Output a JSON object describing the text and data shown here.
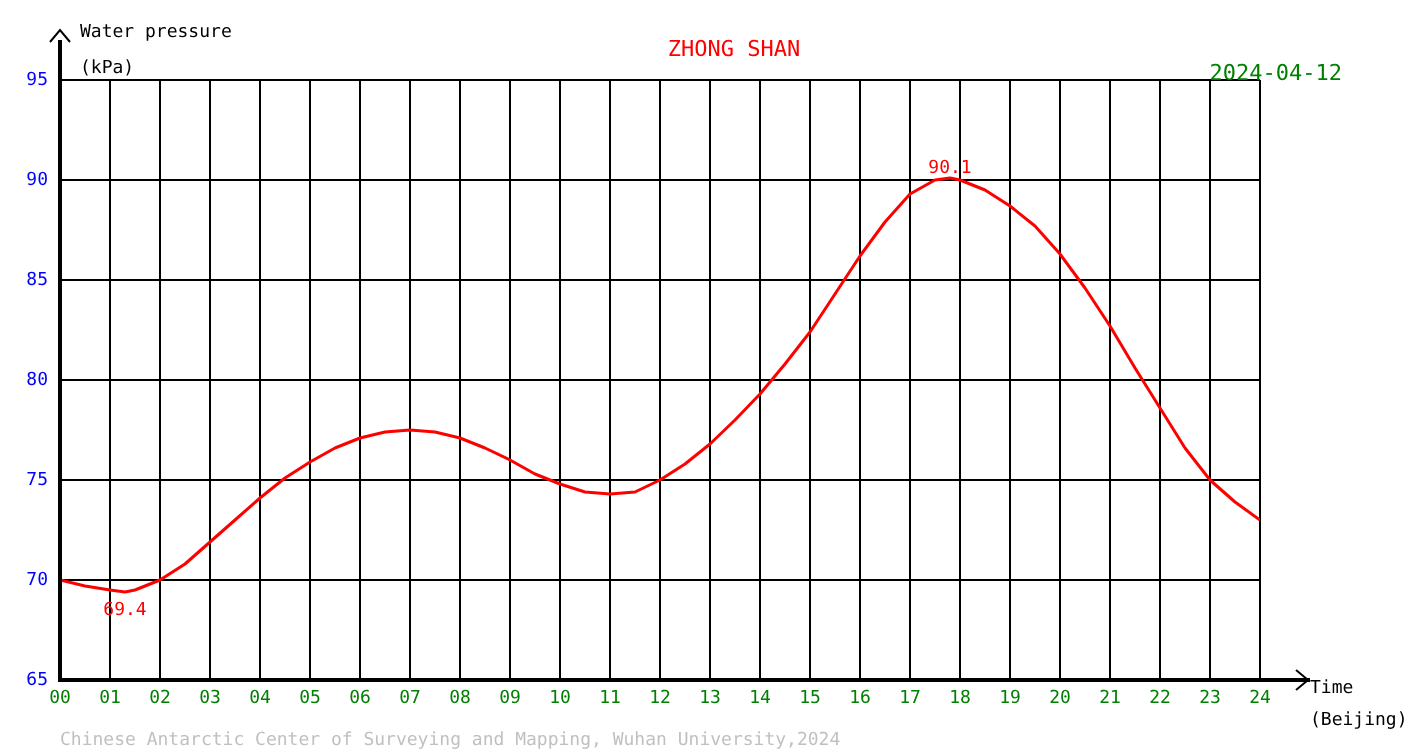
{
  "chart_data": {
    "type": "line",
    "title": "ZHONG SHAN",
    "subtitle": "2024-04-12",
    "ylabel": "Water pressure\n(kPa)",
    "xlabel": "Time\n(Beijing)",
    "x": [
      0,
      0.5,
      1,
      1.3,
      1.5,
      2,
      2.5,
      3,
      3.5,
      4,
      4.5,
      5,
      5.5,
      6,
      6.5,
      7,
      7.5,
      8,
      8.5,
      9,
      9.5,
      10,
      10.5,
      11,
      11.5,
      12,
      12.5,
      13,
      13.5,
      14,
      14.5,
      15,
      15.5,
      16,
      16.5,
      17,
      17.5,
      17.8,
      18,
      18.5,
      19,
      19.5,
      20,
      20.5,
      21,
      21.5,
      22,
      22.5,
      23,
      23.5,
      24
    ],
    "series": [
      {
        "color": "#ff0000",
        "values": [
          70.0,
          69.7,
          69.5,
          69.4,
          69.5,
          70.0,
          70.8,
          71.9,
          73.0,
          74.1,
          75.1,
          75.9,
          76.6,
          77.1,
          77.4,
          77.5,
          77.4,
          77.1,
          76.6,
          76.0,
          75.3,
          74.8,
          74.4,
          74.3,
          74.4,
          75.0,
          75.8,
          76.8,
          78.0,
          79.3,
          80.8,
          82.4,
          84.3,
          86.2,
          87.9,
          89.3,
          90.0,
          90.1,
          90.0,
          89.5,
          88.7,
          87.7,
          86.3,
          84.6,
          82.7,
          80.6,
          78.6,
          76.6,
          75.0,
          73.9,
          73.0
        ]
      }
    ],
    "xlim": [
      0,
      24
    ],
    "xticks": [
      {
        "value": 0,
        "label": "00"
      },
      {
        "value": 1,
        "label": "01"
      },
      {
        "value": 2,
        "label": "02"
      },
      {
        "value": 3,
        "label": "03"
      },
      {
        "value": 4,
        "label": "04"
      },
      {
        "value": 5,
        "label": "05"
      },
      {
        "value": 6,
        "label": "06"
      },
      {
        "value": 7,
        "label": "07"
      },
      {
        "value": 8,
        "label": "08"
      },
      {
        "value": 9,
        "label": "09"
      },
      {
        "value": 10,
        "label": "10"
      },
      {
        "value": 11,
        "label": "11"
      },
      {
        "value": 12,
        "label": "12"
      },
      {
        "value": 13,
        "label": "13"
      },
      {
        "value": 14,
        "label": "14"
      },
      {
        "value": 15,
        "label": "15"
      },
      {
        "value": 16,
        "label": "16"
      },
      {
        "value": 17,
        "label": "17"
      },
      {
        "value": 18,
        "label": "18"
      },
      {
        "value": 19,
        "label": "19"
      },
      {
        "value": 20,
        "label": "20"
      },
      {
        "value": 21,
        "label": "21"
      },
      {
        "value": 22,
        "label": "22"
      },
      {
        "value": 23,
        "label": "23"
      },
      {
        "value": 24,
        "label": "24"
      }
    ],
    "ylim": [
      65,
      95
    ],
    "yticks": [
      65,
      70,
      75,
      80,
      85,
      90,
      95
    ],
    "grid": true,
    "legend": false,
    "line_style": "solid",
    "annotations": [
      {
        "text": "69.4",
        "x": 1.3,
        "y": 69.4
      },
      {
        "text": "90.1",
        "x": 17.8,
        "y": 90.1
      },
      "Chinese Antarctic Center of Surveying and Mapping, Wuhan University,2024"
    ]
  }
}
